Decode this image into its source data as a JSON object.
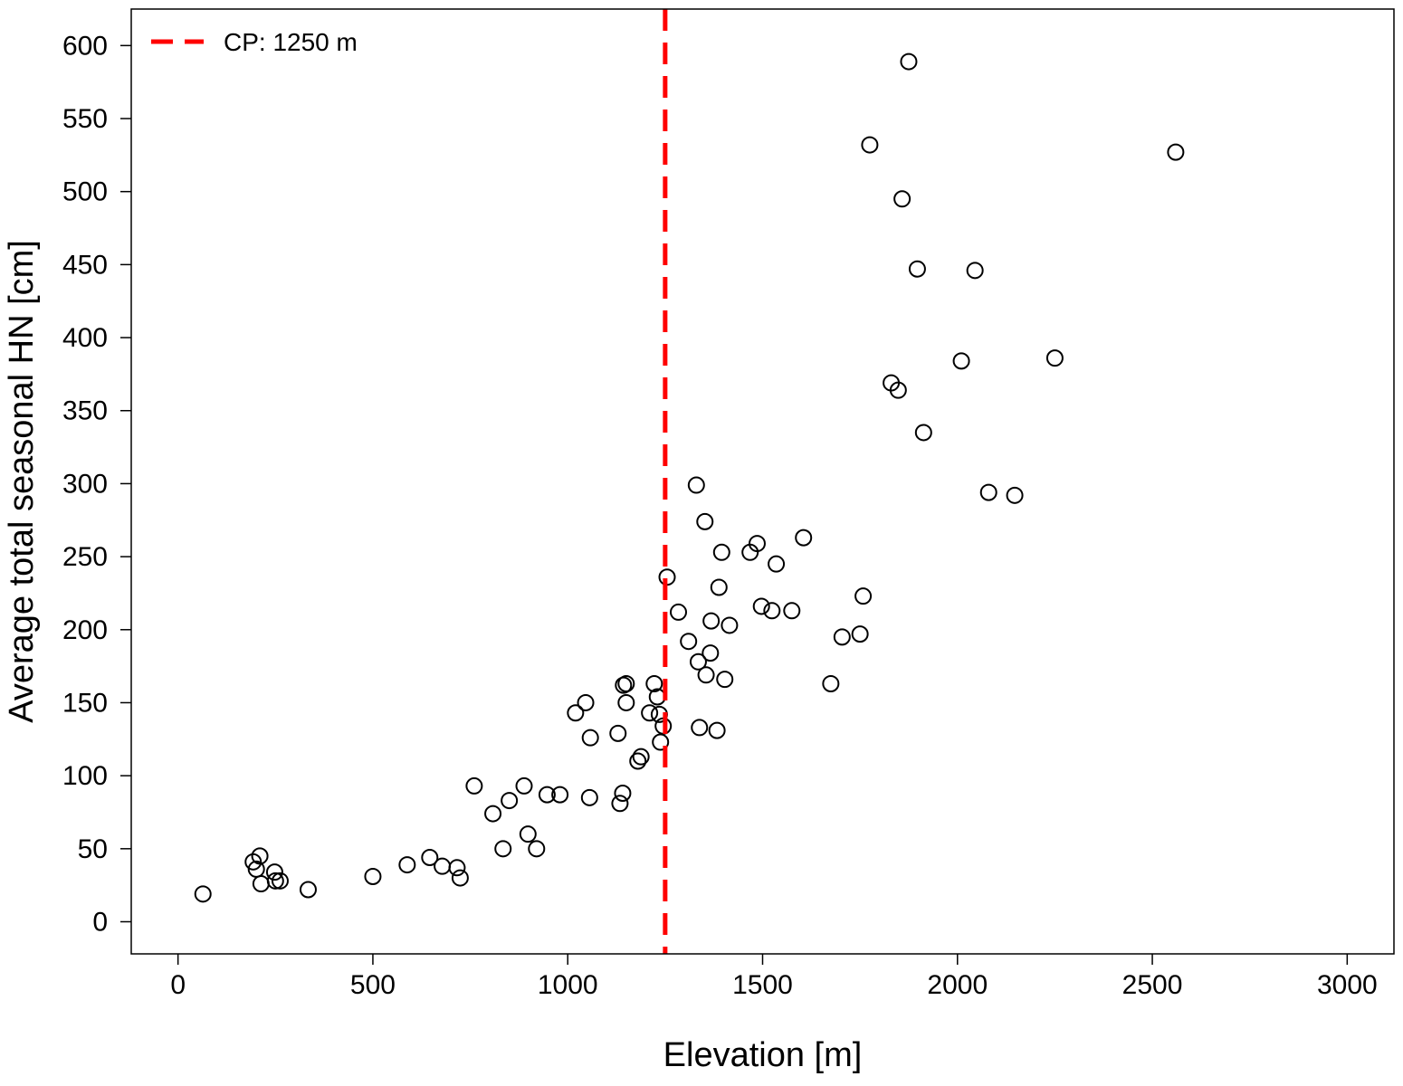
{
  "chart_data": {
    "type": "scatter",
    "title": "",
    "xlabel": "Elevation [m]",
    "ylabel": "Average total seasonal HN [cm]",
    "xlim": [
      -120,
      3120
    ],
    "ylim": [
      -22,
      625
    ],
    "xticks": [
      0,
      500,
      1000,
      1500,
      2000,
      2500,
      3000
    ],
    "yticks": [
      0,
      50,
      100,
      150,
      200,
      250,
      300,
      350,
      400,
      450,
      500,
      550,
      600
    ],
    "grid": false,
    "legend": {
      "position": "top-left",
      "entries": [
        {
          "label": "CP: 1250 m",
          "style": "dashed",
          "color": "#ff0000"
        }
      ]
    },
    "reference_line": {
      "axis": "x",
      "value": 1250,
      "color": "#ff0000",
      "style": "dashed"
    },
    "marker": {
      "shape": "open-circle",
      "color": "#000000"
    },
    "points": [
      {
        "x": 64,
        "y": 19
      },
      {
        "x": 193,
        "y": 41
      },
      {
        "x": 201,
        "y": 36
      },
      {
        "x": 210,
        "y": 45
      },
      {
        "x": 213,
        "y": 26
      },
      {
        "x": 248,
        "y": 34
      },
      {
        "x": 250,
        "y": 28
      },
      {
        "x": 262,
        "y": 28
      },
      {
        "x": 334,
        "y": 22
      },
      {
        "x": 500,
        "y": 31
      },
      {
        "x": 588,
        "y": 39
      },
      {
        "x": 646,
        "y": 44
      },
      {
        "x": 678,
        "y": 38
      },
      {
        "x": 716,
        "y": 37
      },
      {
        "x": 724,
        "y": 30
      },
      {
        "x": 760,
        "y": 93
      },
      {
        "x": 808,
        "y": 74
      },
      {
        "x": 834,
        "y": 50
      },
      {
        "x": 850,
        "y": 83
      },
      {
        "x": 888,
        "y": 93
      },
      {
        "x": 898,
        "y": 60
      },
      {
        "x": 920,
        "y": 50
      },
      {
        "x": 947,
        "y": 87
      },
      {
        "x": 980,
        "y": 87
      },
      {
        "x": 1020,
        "y": 143
      },
      {
        "x": 1046,
        "y": 150
      },
      {
        "x": 1056,
        "y": 85
      },
      {
        "x": 1058,
        "y": 126
      },
      {
        "x": 1129,
        "y": 129
      },
      {
        "x": 1134,
        "y": 81
      },
      {
        "x": 1141,
        "y": 88
      },
      {
        "x": 1143,
        "y": 162
      },
      {
        "x": 1150,
        "y": 163
      },
      {
        "x": 1150,
        "y": 150
      },
      {
        "x": 1180,
        "y": 110
      },
      {
        "x": 1188,
        "y": 113
      },
      {
        "x": 1210,
        "y": 143
      },
      {
        "x": 1222,
        "y": 163
      },
      {
        "x": 1230,
        "y": 154
      },
      {
        "x": 1235,
        "y": 142
      },
      {
        "x": 1238,
        "y": 123
      },
      {
        "x": 1245,
        "y": 134
      },
      {
        "x": 1255,
        "y": 236
      },
      {
        "x": 1284,
        "y": 212
      },
      {
        "x": 1310,
        "y": 192
      },
      {
        "x": 1330,
        "y": 299
      },
      {
        "x": 1335,
        "y": 178
      },
      {
        "x": 1338,
        "y": 133
      },
      {
        "x": 1352,
        "y": 274
      },
      {
        "x": 1355,
        "y": 169
      },
      {
        "x": 1366,
        "y": 184
      },
      {
        "x": 1368,
        "y": 206
      },
      {
        "x": 1383,
        "y": 131
      },
      {
        "x": 1388,
        "y": 229
      },
      {
        "x": 1395,
        "y": 253
      },
      {
        "x": 1403,
        "y": 166
      },
      {
        "x": 1415,
        "y": 203
      },
      {
        "x": 1468,
        "y": 253
      },
      {
        "x": 1486,
        "y": 259
      },
      {
        "x": 1497,
        "y": 216
      },
      {
        "x": 1524,
        "y": 213
      },
      {
        "x": 1535,
        "y": 245
      },
      {
        "x": 1575,
        "y": 213
      },
      {
        "x": 1605,
        "y": 263
      },
      {
        "x": 1675,
        "y": 163
      },
      {
        "x": 1704,
        "y": 195
      },
      {
        "x": 1750,
        "y": 197
      },
      {
        "x": 1758,
        "y": 223
      },
      {
        "x": 1775,
        "y": 532
      },
      {
        "x": 1830,
        "y": 369
      },
      {
        "x": 1848,
        "y": 364
      },
      {
        "x": 1858,
        "y": 495
      },
      {
        "x": 1875,
        "y": 589
      },
      {
        "x": 1897,
        "y": 447
      },
      {
        "x": 1913,
        "y": 335
      },
      {
        "x": 2010,
        "y": 384
      },
      {
        "x": 2045,
        "y": 446
      },
      {
        "x": 2080,
        "y": 294
      },
      {
        "x": 2147,
        "y": 292
      },
      {
        "x": 2250,
        "y": 386
      },
      {
        "x": 2560,
        "y": 527
      }
    ]
  }
}
